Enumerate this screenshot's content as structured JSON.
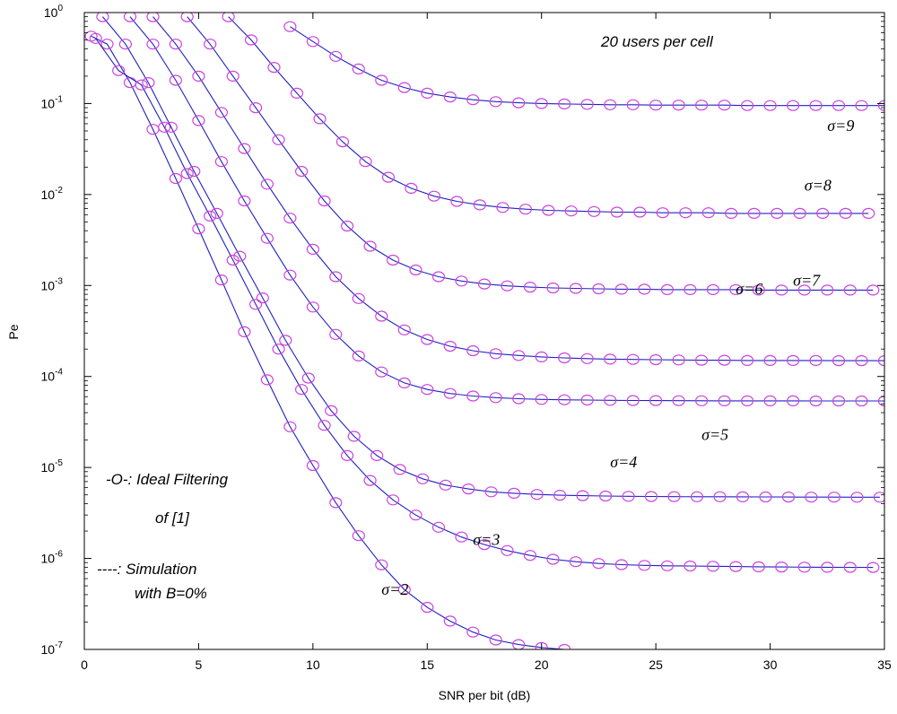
{
  "chart_data": {
    "type": "line",
    "xlabel": "SNR per bit (dB)",
    "ylabel": "Pe",
    "xlim": [
      0,
      35
    ],
    "ylim": [
      1e-07,
      1
    ],
    "yscale": "log",
    "grid": false,
    "x_ticks": [
      "0",
      "5",
      "10",
      "15",
      "20",
      "25",
      "30",
      "35"
    ],
    "y_ticks": [
      {
        "base": "10",
        "exp": "0"
      },
      {
        "base": "10",
        "exp": "-1"
      },
      {
        "base": "10",
        "exp": "-2"
      },
      {
        "base": "10",
        "exp": "-3"
      },
      {
        "base": "10",
        "exp": "-4"
      },
      {
        "base": "10",
        "exp": "-5"
      },
      {
        "base": "10",
        "exp": "-6"
      },
      {
        "base": "10",
        "exp": "-7"
      }
    ],
    "annotations": {
      "users": "20 users per cell",
      "legend_ideal": "-O-: Ideal Filtering",
      "legend_ideal_ref": "of [1]",
      "legend_sim": "----: Simulation",
      "legend_sim_b": "with B=0%"
    },
    "colors": {
      "line": "#2020c0",
      "marker": "#cc44dd"
    },
    "series": [
      {
        "name": "σ=2",
        "points": [
          [
            0.3,
            0.55
          ],
          [
            1,
            0.45
          ],
          [
            2,
            0.17
          ],
          [
            3,
            0.052
          ],
          [
            4,
            0.015
          ],
          [
            5,
            0.0042
          ],
          [
            6,
            0.00115
          ],
          [
            7,
            0.00031
          ],
          [
            8,
            9.2e-05
          ],
          [
            9,
            2.8e-05
          ],
          [
            10,
            1.05e-05
          ],
          [
            11,
            4.1e-06
          ],
          [
            12,
            1.78e-06
          ],
          [
            13,
            8.5e-07
          ],
          [
            14,
            4.55e-07
          ],
          [
            15,
            2.9e-07
          ],
          [
            16,
            2.05e-07
          ],
          [
            17,
            1.55e-07
          ],
          [
            18,
            1.27e-07
          ],
          [
            19,
            1.13e-07
          ],
          [
            20,
            1.05e-07
          ],
          [
            21,
            1e-07
          ]
        ]
      },
      {
        "name": "σ=3",
        "points": [
          [
            0.5,
            0.52
          ],
          [
            1.5,
            0.23
          ],
          [
            2.5,
            0.16
          ],
          [
            3.5,
            0.055
          ],
          [
            4.5,
            0.017
          ],
          [
            5.5,
            0.0058
          ],
          [
            6.5,
            0.0019
          ],
          [
            7.5,
            0.00062
          ],
          [
            8.5,
            0.0002
          ],
          [
            9.5,
            7.2e-05
          ],
          [
            10.5,
            2.9e-05
          ],
          [
            11.5,
            1.35e-05
          ],
          [
            12.5,
            7.2e-06
          ],
          [
            13.5,
            4.4e-06
          ],
          [
            14.5,
            3e-06
          ],
          [
            15.5,
            2.2e-06
          ],
          [
            16.5,
            1.72e-06
          ],
          [
            17.5,
            1.42e-06
          ],
          [
            18.5,
            1.22e-06
          ],
          [
            19.5,
            1.08e-06
          ],
          [
            20.5,
            9.8e-07
          ],
          [
            21.5,
            9.2e-07
          ],
          [
            22.5,
            8.8e-07
          ],
          [
            23.5,
            8.55e-07
          ],
          [
            24.5,
            8.4e-07
          ],
          [
            25.5,
            8.3e-07
          ],
          [
            26.5,
            8.25e-07
          ],
          [
            27.5,
            8.2e-07
          ],
          [
            28.5,
            8.15e-07
          ],
          [
            29.5,
            8.1e-07
          ],
          [
            30.5,
            8.05e-07
          ],
          [
            31.5,
            8.02e-07
          ],
          [
            32.5,
            8e-07
          ],
          [
            33.5,
            7.98e-07
          ],
          [
            34.5,
            7.97e-07
          ]
        ]
      },
      {
        "name": "σ=4",
        "points": [
          [
            0.8,
            0.9
          ],
          [
            1.8,
            0.45
          ],
          [
            2.8,
            0.17
          ],
          [
            3.8,
            0.055
          ],
          [
            4.8,
            0.018
          ],
          [
            5.8,
            0.0062
          ],
          [
            6.8,
            0.0021
          ],
          [
            7.8,
            0.00073
          ],
          [
            8.8,
            0.00025
          ],
          [
            9.8,
            9.6e-05
          ],
          [
            10.8,
            4.2e-05
          ],
          [
            11.8,
            2.2e-05
          ],
          [
            12.8,
            1.35e-05
          ],
          [
            13.8,
            9.5e-06
          ],
          [
            14.8,
            7.5e-06
          ],
          [
            15.8,
            6.4e-06
          ],
          [
            16.8,
            5.8e-06
          ],
          [
            17.8,
            5.4e-06
          ],
          [
            18.8,
            5.2e-06
          ],
          [
            19.8,
            5.05e-06
          ],
          [
            20.8,
            4.95e-06
          ],
          [
            21.8,
            4.9e-06
          ],
          [
            22.8,
            4.85e-06
          ],
          [
            23.8,
            4.82e-06
          ],
          [
            24.8,
            4.8e-06
          ],
          [
            25.8,
            4.78e-06
          ],
          [
            26.8,
            4.77e-06
          ],
          [
            27.8,
            4.76e-06
          ],
          [
            28.8,
            4.75e-06
          ],
          [
            29.8,
            4.74e-06
          ],
          [
            30.8,
            4.73e-06
          ],
          [
            31.8,
            4.72e-06
          ],
          [
            32.8,
            4.72e-06
          ],
          [
            33.8,
            4.71e-06
          ],
          [
            34.8,
            4.71e-06
          ]
        ]
      },
      {
        "name": "σ=5",
        "points": [
          [
            2,
            0.9
          ],
          [
            3,
            0.45
          ],
          [
            4,
            0.18
          ],
          [
            5,
            0.065
          ],
          [
            6,
            0.023
          ],
          [
            7,
            0.0085
          ],
          [
            8,
            0.0033
          ],
          [
            9,
            0.0013
          ],
          [
            10,
            0.00058
          ],
          [
            11,
            0.00029
          ],
          [
            12,
            0.000168
          ],
          [
            13,
            0.000112
          ],
          [
            14,
            8.5e-05
          ],
          [
            15,
            7.2e-05
          ],
          [
            16,
            6.5e-05
          ],
          [
            17,
            6.1e-05
          ],
          [
            18,
            5.85e-05
          ],
          [
            19,
            5.7e-05
          ],
          [
            20,
            5.6e-05
          ],
          [
            21,
            5.55e-05
          ],
          [
            22,
            5.5e-05
          ],
          [
            23,
            5.47e-05
          ],
          [
            24,
            5.45e-05
          ],
          [
            25,
            5.43e-05
          ],
          [
            26,
            5.42e-05
          ],
          [
            27,
            5.41e-05
          ],
          [
            28,
            5.4e-05
          ],
          [
            29,
            5.4e-05
          ],
          [
            30,
            5.39e-05
          ],
          [
            31,
            5.39e-05
          ],
          [
            32,
            5.38e-05
          ],
          [
            33,
            5.38e-05
          ],
          [
            34,
            5.38e-05
          ],
          [
            35,
            5.38e-05
          ]
        ]
      },
      {
        "name": "σ=6",
        "points": [
          [
            3,
            0.9
          ],
          [
            4,
            0.45
          ],
          [
            5,
            0.2
          ],
          [
            6,
            0.08
          ],
          [
            7,
            0.032
          ],
          [
            8,
            0.013
          ],
          [
            9,
            0.0055
          ],
          [
            10,
            0.0025
          ],
          [
            11,
            0.00125
          ],
          [
            12,
            0.00072
          ],
          [
            13,
            0.00046
          ],
          [
            14,
            0.000325
          ],
          [
            15,
            0.000255
          ],
          [
            16,
            0.000215
          ],
          [
            17,
            0.000192
          ],
          [
            18,
            0.000178
          ],
          [
            19,
            0.00017
          ],
          [
            20,
            0.000164
          ],
          [
            21,
            0.00016
          ],
          [
            22,
            0.000157
          ],
          [
            23,
            0.000155
          ],
          [
            24,
            0.000154
          ],
          [
            25,
            0.000153
          ],
          [
            26,
            0.000152
          ],
          [
            27,
            0.000151
          ],
          [
            28,
            0.000151
          ],
          [
            29,
            0.00015
          ],
          [
            30,
            0.00015
          ],
          [
            31,
            0.00015
          ],
          [
            32,
            0.00015
          ],
          [
            33,
            0.000149
          ],
          [
            34,
            0.000149
          ],
          [
            35,
            0.000149
          ]
        ]
      },
      {
        "name": "σ=7",
        "points": [
          [
            4.5,
            0.9
          ],
          [
            5.5,
            0.45
          ],
          [
            6.5,
            0.2
          ],
          [
            7.5,
            0.09
          ],
          [
            8.5,
            0.04
          ],
          [
            9.5,
            0.018
          ],
          [
            10.5,
            0.0085
          ],
          [
            11.5,
            0.0045
          ],
          [
            12.5,
            0.0027
          ],
          [
            13.5,
            0.0019
          ],
          [
            14.5,
            0.00148
          ],
          [
            15.5,
            0.00125
          ],
          [
            16.5,
            0.00112
          ],
          [
            17.5,
            0.00104
          ],
          [
            18.5,
            0.00099
          ],
          [
            19.5,
            0.00096
          ],
          [
            20.5,
            0.00094
          ],
          [
            21.5,
            0.00093
          ],
          [
            22.5,
            0.00092
          ],
          [
            23.5,
            0.00091
          ],
          [
            24.5,
            0.00091
          ],
          [
            25.5,
            0.0009
          ],
          [
            26.5,
            0.0009
          ],
          [
            27.5,
            0.0009
          ],
          [
            28.5,
            0.0009
          ],
          [
            29.5,
            0.00089
          ],
          [
            30.5,
            0.00089
          ],
          [
            31.5,
            0.00089
          ],
          [
            32.5,
            0.00089
          ],
          [
            33.5,
            0.00089
          ],
          [
            34.5,
            0.00089
          ]
        ]
      },
      {
        "name": "σ=8",
        "points": [
          [
            6.3,
            0.9
          ],
          [
            7.3,
            0.5
          ],
          [
            8.3,
            0.25
          ],
          [
            9.3,
            0.13
          ],
          [
            10.3,
            0.068
          ],
          [
            11.3,
            0.038
          ],
          [
            12.3,
            0.023
          ],
          [
            13.3,
            0.0155
          ],
          [
            14.3,
            0.0117
          ],
          [
            15.3,
            0.0096
          ],
          [
            16.3,
            0.0084
          ],
          [
            17.3,
            0.0077
          ],
          [
            18.3,
            0.0072
          ],
          [
            19.3,
            0.0069
          ],
          [
            20.3,
            0.0067
          ],
          [
            21.3,
            0.0066
          ],
          [
            22.3,
            0.0065
          ],
          [
            23.3,
            0.0064
          ],
          [
            24.3,
            0.0064
          ],
          [
            25.3,
            0.0063
          ],
          [
            26.3,
            0.0063
          ],
          [
            27.3,
            0.0063
          ],
          [
            28.3,
            0.0062
          ],
          [
            29.3,
            0.0062
          ],
          [
            30.3,
            0.0062
          ],
          [
            31.3,
            0.0062
          ],
          [
            32.3,
            0.0062
          ],
          [
            33.3,
            0.0062
          ],
          [
            34.3,
            0.0062
          ]
        ]
      },
      {
        "name": "σ=9",
        "points": [
          [
            9,
            0.7
          ],
          [
            10,
            0.48
          ],
          [
            11,
            0.33
          ],
          [
            12,
            0.24
          ],
          [
            13,
            0.18
          ],
          [
            14,
            0.15
          ],
          [
            15,
            0.13
          ],
          [
            16,
            0.118
          ],
          [
            17,
            0.11
          ],
          [
            18,
            0.105
          ],
          [
            19,
            0.102
          ],
          [
            20,
            0.1
          ],
          [
            21,
            0.099
          ],
          [
            22,
            0.098
          ],
          [
            23,
            0.097
          ],
          [
            24,
            0.097
          ],
          [
            25,
            0.096
          ],
          [
            26,
            0.096
          ],
          [
            27,
            0.096
          ],
          [
            28,
            0.096
          ],
          [
            29,
            0.095
          ],
          [
            30,
            0.095
          ],
          [
            31,
            0.095
          ],
          [
            32,
            0.095
          ],
          [
            33,
            0.095
          ],
          [
            34,
            0.095
          ],
          [
            35,
            0.095
          ]
        ]
      }
    ],
    "series_labels": [
      {
        "text": "σ=2",
        "x": 13.0,
        "y": 4e-07
      },
      {
        "text": "σ=3",
        "x": 17.0,
        "y": 1.4e-06
      },
      {
        "text": "σ=4",
        "x": 23.0,
        "y": 1e-05
      },
      {
        "text": "σ=5",
        "x": 27.0,
        "y": 2e-05
      },
      {
        "text": "σ=6",
        "x": 28.5,
        "y": 0.0008
      },
      {
        "text": "σ=7",
        "x": 31.0,
        "y": 0.001
      },
      {
        "text": "σ=8",
        "x": 31.5,
        "y": 0.011
      },
      {
        "text": "σ=9",
        "x": 32.5,
        "y": 0.05
      }
    ]
  }
}
